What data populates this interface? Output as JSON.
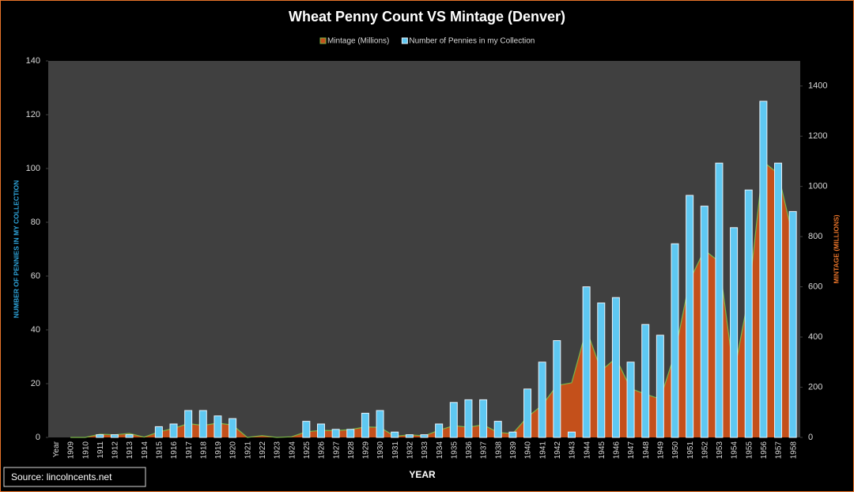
{
  "chart_data": {
    "type": "combo",
    "title": "Wheat Penny Count VS Mintage (Denver)",
    "x_label": "YEAR",
    "y_label": "NUMBER OF PENNIES IN MY COLLECTION",
    "y2_label": "MINTAGE (MILLIONS)",
    "source": "Source: lincolncents.net",
    "categories": [
      "Year",
      "1909",
      "1910",
      "1911",
      "1912",
      "1913",
      "1914",
      "1915",
      "1916",
      "1917",
      "1918",
      "1919",
      "1920",
      "1921",
      "1922",
      "1923",
      "1924",
      "1925",
      "1926",
      "1927",
      "1928",
      "1929",
      "1930",
      "1931",
      "1932",
      "1933",
      "1934",
      "1935",
      "1936",
      "1937",
      "1938",
      "1939",
      "1940",
      "1941",
      "1942",
      "1943",
      "1944",
      "1945",
      "1946",
      "1947",
      "1948",
      "1949",
      "1950",
      "1951",
      "1952",
      "1953",
      "1954",
      "1955",
      "1956",
      "1957",
      "1958"
    ],
    "series": [
      {
        "name": "Mintage (Millions)",
        "type": "area",
        "axis": "y2",
        "color": "#c4501b",
        "line_color": "#7ab648",
        "values": [
          null,
          0,
          0,
          12.7,
          10.4,
          15.8,
          1.2,
          22,
          35.9,
          55.1,
          47.8,
          57.2,
          49.3,
          0,
          7.2,
          0,
          2.5,
          22.6,
          28,
          27.2,
          31.2,
          41.7,
          40.1,
          4.5,
          10.5,
          6.2,
          28.4,
          47,
          40.6,
          50.4,
          20,
          15.2,
          81.4,
          128.7,
          206.7,
          217.7,
          430.6,
          266.3,
          315.7,
          194.8,
          172.6,
          153.1,
          334.9,
          625.4,
          746.1,
          700.5,
          251.6,
          563.3,
          1098.2,
          1051.3,
          800.9
        ]
      },
      {
        "name": "Number of Pennies in my Collection",
        "type": "bar",
        "axis": "y",
        "color": "#5ec8f2",
        "line_color": "#e6f2fa",
        "values": [
          null,
          0,
          0,
          1,
          1,
          1,
          0,
          4,
          5,
          10,
          10,
          8,
          7,
          0,
          0,
          0,
          0,
          6,
          5,
          3,
          3,
          9,
          10,
          2,
          1,
          1,
          5,
          13,
          14,
          14,
          6,
          2,
          18,
          28,
          36,
          2,
          56,
          50,
          52,
          28,
          42,
          38,
          72,
          90,
          86,
          102,
          78,
          92,
          125,
          102,
          84
        ]
      }
    ],
    "ylim": [
      0,
      140
    ],
    "yticks": [
      0,
      20,
      40,
      60,
      80,
      100,
      120,
      140
    ],
    "y2lim": [
      0,
      1500
    ],
    "y2ticks": [
      0,
      200,
      400,
      600,
      800,
      1000,
      1200,
      1400
    ],
    "grid": false,
    "legend": "top"
  }
}
